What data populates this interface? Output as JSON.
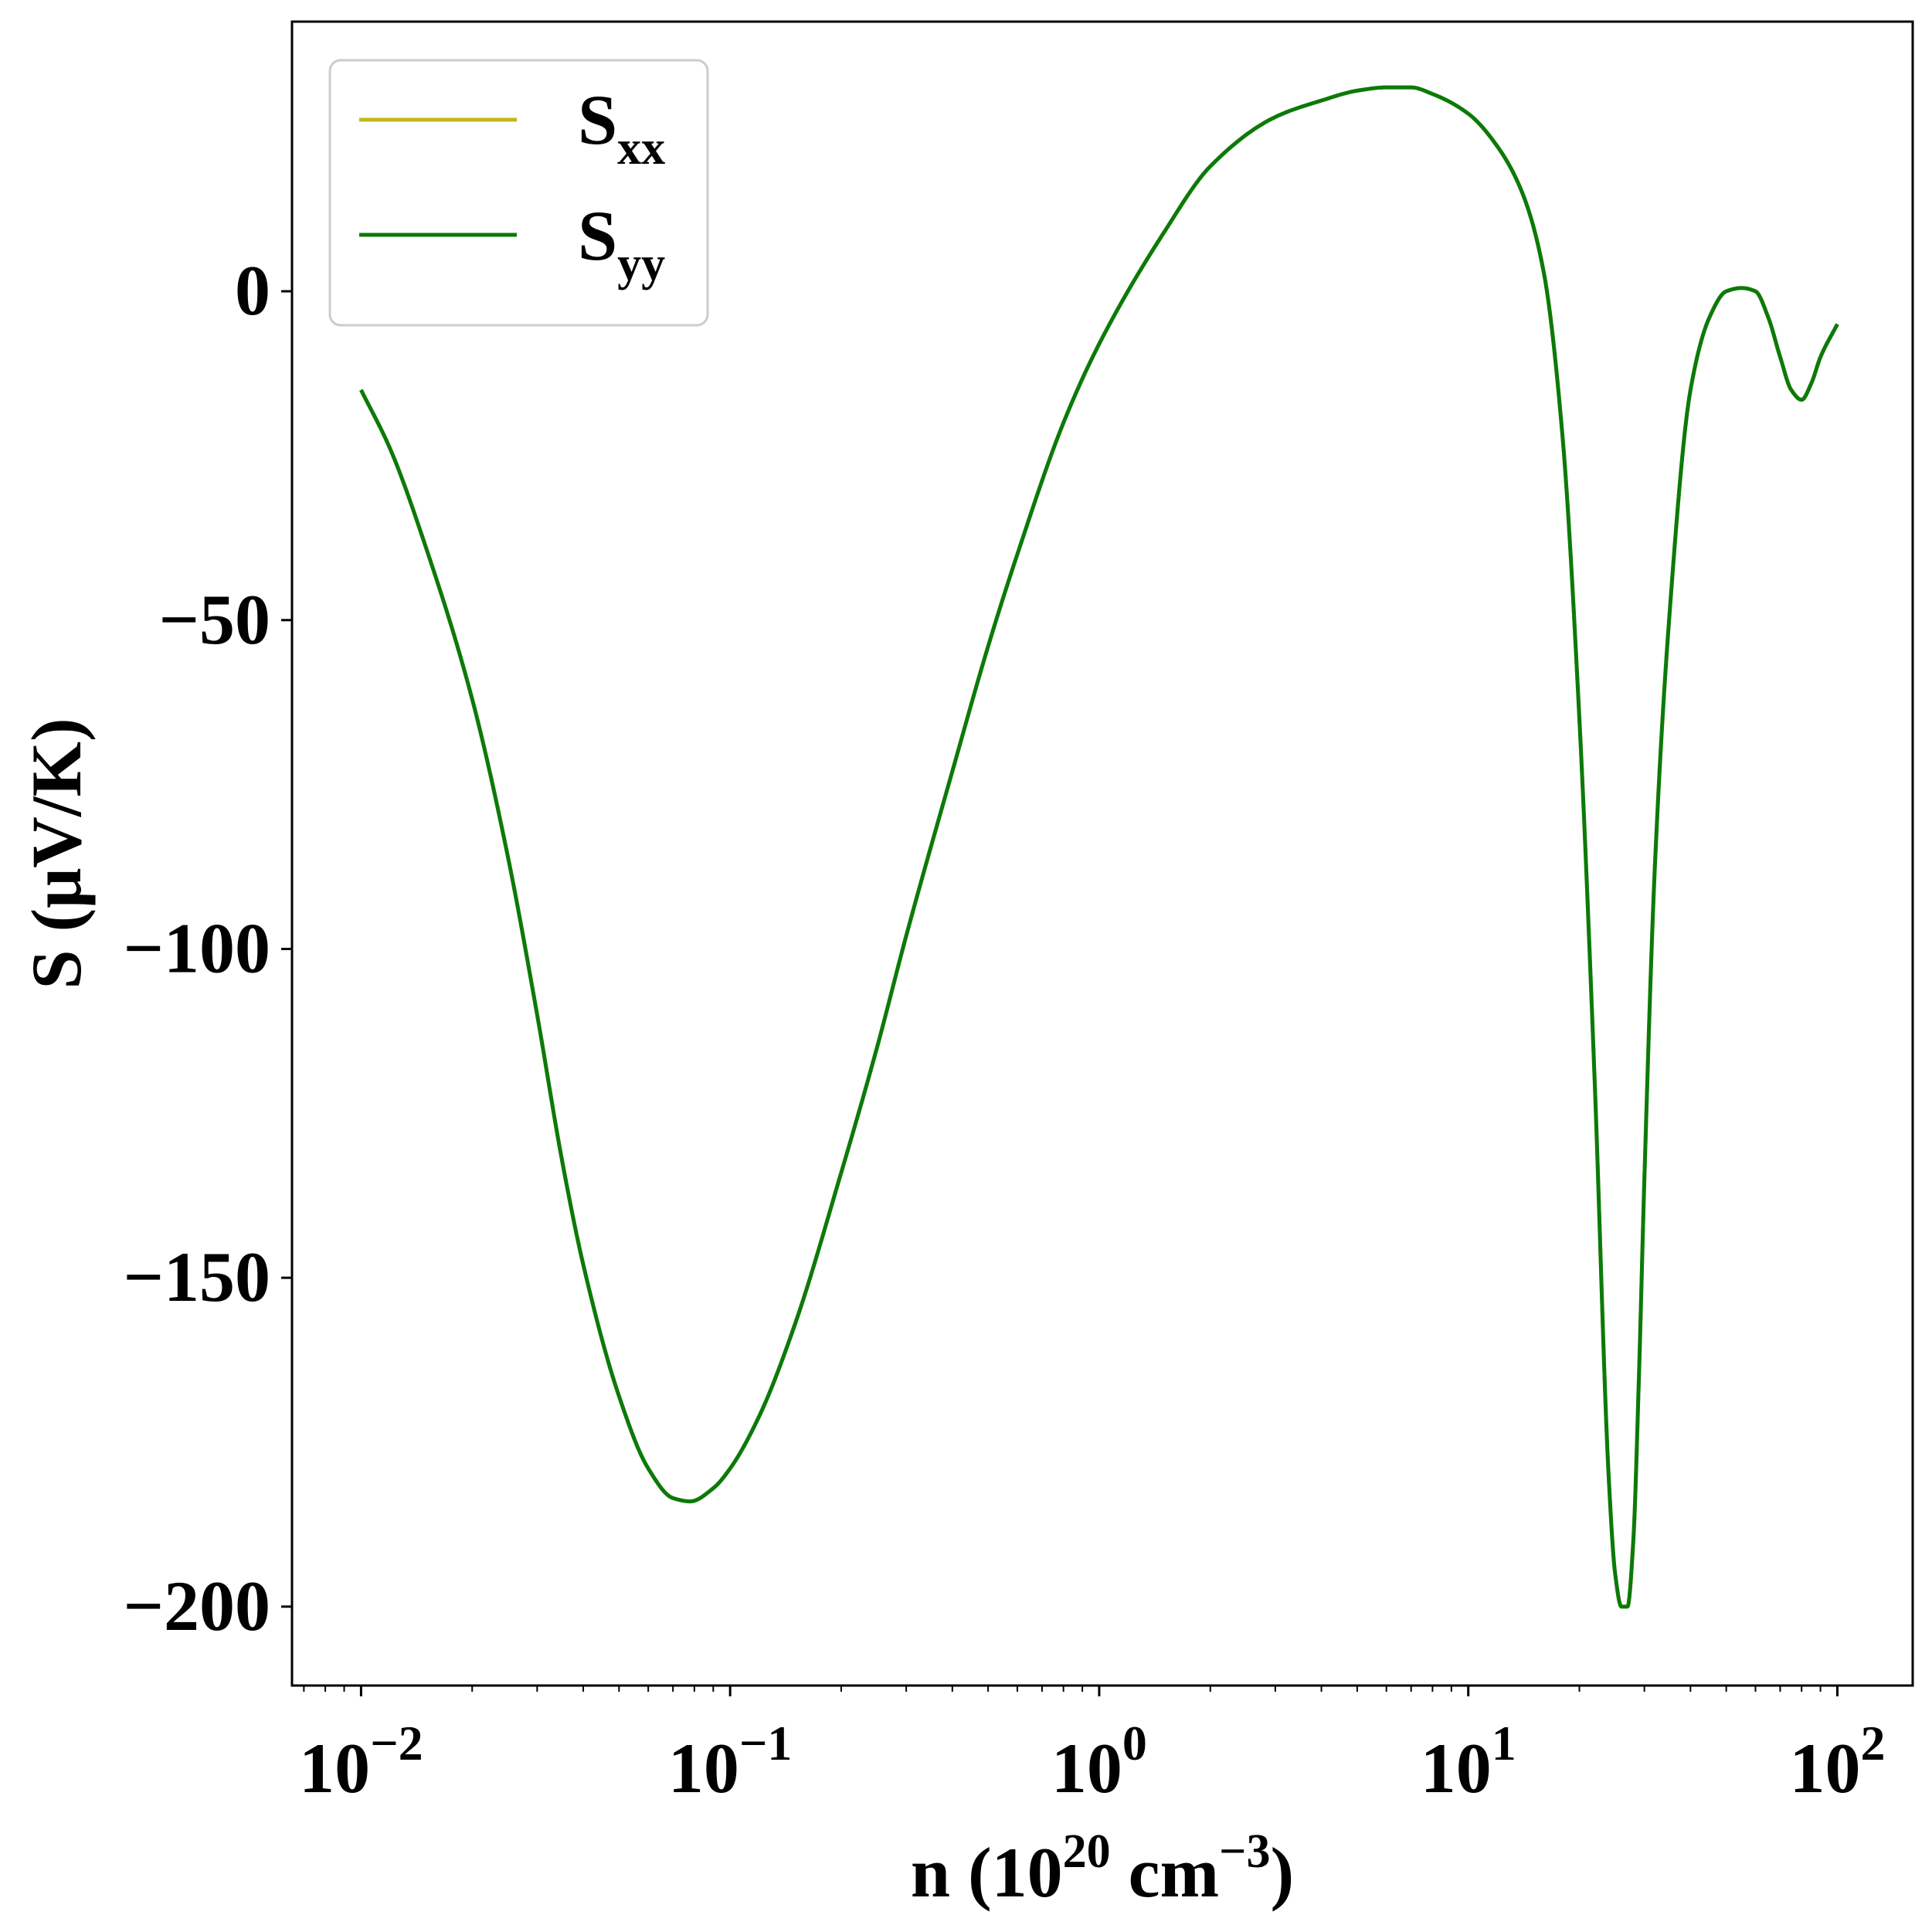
{
  "chart_data": {
    "type": "line",
    "xlabel": {
      "base": "n (10",
      "sup1": "20",
      "mid": " cm",
      "sup2": "−3",
      "end": ")"
    },
    "ylabel": "S (μV/K)",
    "xscale": "log",
    "xlim": [
      0.0065,
      160
    ],
    "ylim": [
      -212,
      41
    ],
    "x_ticks": [
      {
        "value": 0.01,
        "base": "10",
        "exp": "−2"
      },
      {
        "value": 0.1,
        "base": "10",
        "exp": "−1"
      },
      {
        "value": 1,
        "base": "10",
        "exp": "0"
      },
      {
        "value": 10,
        "base": "10",
        "exp": "1"
      },
      {
        "value": 100,
        "base": "10",
        "exp": "2"
      }
    ],
    "y_ticks": [
      {
        "value": 0,
        "label": "0"
      },
      {
        "value": -50,
        "label": "−50"
      },
      {
        "value": -100,
        "label": "−100"
      },
      {
        "value": -150,
        "label": "−150"
      },
      {
        "value": -200,
        "label": "−200"
      }
    ],
    "grid": false,
    "legend": {
      "placement": "top-left",
      "entries": [
        {
          "base": "S",
          "sub": "xx",
          "color": "#c4b818"
        },
        {
          "base": "S",
          "sub": "yy",
          "color": "#0b7a0b"
        }
      ]
    },
    "series": [
      {
        "name": "Sxx",
        "color": "#c4b818",
        "x": [
          0.01,
          0.012,
          0.015,
          0.02,
          0.025,
          0.03,
          0.035,
          0.04,
          0.05,
          0.06,
          0.07,
          0.078,
          0.09,
          0.1,
          0.12,
          0.15,
          0.2,
          0.25,
          0.3,
          0.4,
          0.5,
          0.6,
          0.8,
          1.0,
          1.5,
          2,
          3,
          4,
          5,
          6,
          7,
          8,
          10,
          12,
          14,
          16,
          18,
          20,
          22,
          24,
          25,
          26,
          27,
          28,
          29,
          30,
          32,
          35,
          40,
          45,
          50,
          55,
          60,
          65,
          70,
          75,
          80,
          85,
          90,
          100
        ],
        "y": [
          -15,
          -24,
          -39,
          -62,
          -86,
          -110,
          -132,
          -148,
          -168,
          -179,
          -183.5,
          -184,
          -182,
          -179,
          -171,
          -157,
          -134,
          -115,
          -98,
          -73,
          -54,
          -40,
          -20,
          -8,
          9,
          19,
          26.5,
          29,
          30.5,
          31,
          31,
          30,
          27,
          22,
          15,
          3,
          -22,
          -65,
          -120,
          -180,
          -195,
          -200,
          -200,
          -190,
          -165,
          -135,
          -88,
          -50,
          -15,
          -4,
          0,
          0.5,
          0,
          -4,
          -10,
          -15,
          -16.5,
          -14,
          -10,
          -5
        ]
      },
      {
        "name": "Syy",
        "color": "#0b7a0b",
        "x": [
          0.01,
          0.012,
          0.015,
          0.02,
          0.025,
          0.03,
          0.035,
          0.04,
          0.05,
          0.06,
          0.07,
          0.078,
          0.09,
          0.1,
          0.12,
          0.15,
          0.2,
          0.25,
          0.3,
          0.4,
          0.5,
          0.6,
          0.8,
          1.0,
          1.5,
          2,
          3,
          4,
          5,
          6,
          7,
          8,
          10,
          12,
          14,
          16,
          18,
          20,
          22,
          24,
          25,
          26,
          27,
          28,
          29,
          30,
          32,
          35,
          40,
          45,
          50,
          55,
          60,
          65,
          70,
          75,
          80,
          85,
          90,
          100
        ],
        "y": [
          -15,
          -24,
          -39,
          -62,
          -86,
          -110,
          -132,
          -148,
          -168,
          -179,
          -183.5,
          -184,
          -182,
          -179,
          -171,
          -157,
          -134,
          -115,
          -98,
          -73,
          -54,
          -40,
          -20,
          -8,
          9,
          19,
          26.5,
          29,
          30.5,
          31,
          31,
          30,
          27,
          22,
          15,
          3,
          -22,
          -65,
          -120,
          -180,
          -195,
          -200,
          -200,
          -190,
          -165,
          -135,
          -88,
          -50,
          -15,
          -4,
          0,
          0.5,
          0,
          -4,
          -10,
          -15,
          -16.5,
          -14,
          -10,
          -5
        ]
      }
    ]
  }
}
